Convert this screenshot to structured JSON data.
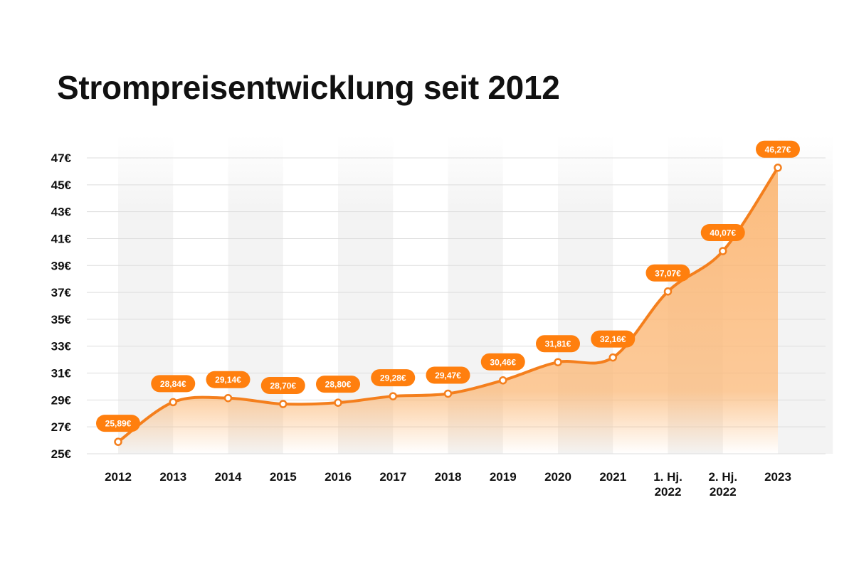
{
  "page": {
    "title": "Strompreisentwicklung seit 2012"
  },
  "colors": {
    "accent": "#ff7f0e",
    "line": "#f47f1d",
    "area": "#fbb877",
    "grid": "#dddddd",
    "column_shade": "#f1f1f1",
    "text": "#111111"
  },
  "chart_data": {
    "type": "area",
    "title": "Strompreisentwicklung seit 2012",
    "xlabel": "",
    "ylabel": "",
    "ylim": [
      25,
      48
    ],
    "y_ticks": [
      25,
      27,
      29,
      31,
      33,
      35,
      37,
      39,
      41,
      43,
      45,
      47
    ],
    "y_tick_labels": [
      "25€",
      "27€",
      "29€",
      "31€",
      "33€",
      "35€",
      "37€",
      "39€",
      "41€",
      "43€",
      "45€",
      "47€"
    ],
    "categories": [
      [
        "2012"
      ],
      [
        "2013"
      ],
      [
        "2014"
      ],
      [
        "2015"
      ],
      [
        "2016"
      ],
      [
        "2017"
      ],
      [
        "2018"
      ],
      [
        "2019"
      ],
      [
        "2020"
      ],
      [
        "2021"
      ],
      [
        "1. Hj.",
        "2022"
      ],
      [
        "2. Hj.",
        "2022"
      ],
      [
        "2023"
      ]
    ],
    "values": [
      25.89,
      28.84,
      29.14,
      28.7,
      28.8,
      29.28,
      29.47,
      30.46,
      31.81,
      32.16,
      37.07,
      40.07,
      46.27
    ],
    "data_labels": [
      "25,89€",
      "28,84€",
      "29,14€",
      "28,70€",
      "28,80€",
      "29,28€",
      "29,47€",
      "30,46€",
      "31,81€",
      "32,16€",
      "37,07€",
      "40,07€",
      "46,27€"
    ],
    "grid": true,
    "alternating_column_shading": true,
    "legend": "none"
  }
}
